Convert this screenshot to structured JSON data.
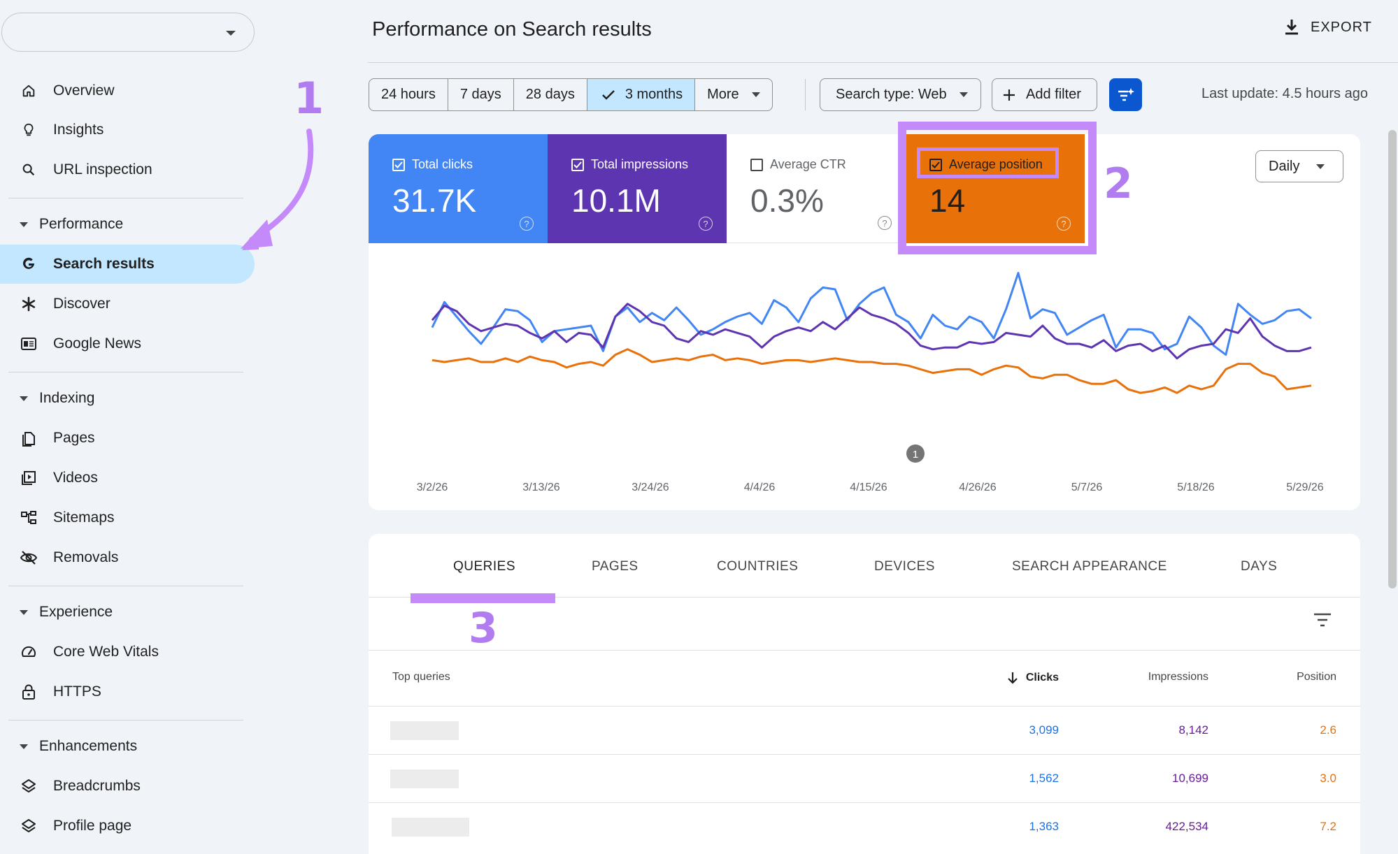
{
  "sidebar": {
    "overview": "Overview",
    "insights": "Insights",
    "url_inspection": "URL inspection",
    "performance": "Performance",
    "search_results": "Search results",
    "discover": "Discover",
    "google_news": "Google News",
    "indexing": "Indexing",
    "pages": "Pages",
    "videos": "Videos",
    "sitemaps": "Sitemaps",
    "removals": "Removals",
    "experience": "Experience",
    "core_web_vitals": "Core Web Vitals",
    "https": "HTTPS",
    "enhancements": "Enhancements",
    "breadcrumbs": "Breadcrumbs",
    "profile_page": "Profile page"
  },
  "header": {
    "title": "Performance on Search results",
    "export": "EXPORT"
  },
  "filters": {
    "ranges": [
      "24 hours",
      "7 days",
      "28 days",
      "3 months",
      "More"
    ],
    "selected_range": "3 months",
    "search_type": "Search type: Web",
    "add_filter": "Add filter",
    "last_update": "Last update: 4.5 hours ago"
  },
  "metrics": {
    "clicks": {
      "label": "Total clicks",
      "value": "31.7K",
      "checked": true,
      "color": "#4285f4"
    },
    "impressions": {
      "label": "Total impressions",
      "value": "10.1M",
      "checked": true,
      "color": "#5e35b1"
    },
    "ctr": {
      "label": "Average CTR",
      "value": "0.3%",
      "checked": false
    },
    "position": {
      "label": "Average position",
      "value": "14",
      "checked": true,
      "color": "#e8710a"
    },
    "granularity": "Daily"
  },
  "annotations": {
    "one": "1",
    "two": "2",
    "three": "3",
    "marker": "1"
  },
  "chart_data": {
    "type": "line",
    "x_ticks": [
      "3/2/26",
      "3/13/26",
      "3/24/26",
      "4/4/26",
      "4/15/26",
      "4/26/26",
      "5/7/26",
      "5/18/26",
      "5/29/26"
    ],
    "series": [
      {
        "name": "Total clicks",
        "color": "#4285f4",
        "values": [
          69,
          83,
          75,
          67,
          60,
          69,
          79,
          78,
          73,
          61,
          67,
          68,
          69,
          70,
          56,
          75,
          80,
          72,
          77,
          73,
          80,
          73,
          65,
          68,
          72,
          75,
          77,
          71,
          84,
          80,
          72,
          85,
          91,
          90,
          73,
          82,
          88,
          91,
          76,
          72,
          63,
          76,
          70,
          68,
          75,
          72,
          63,
          79,
          99,
          74,
          79,
          77,
          65,
          69,
          73,
          76,
          58,
          68,
          68,
          66,
          57,
          60,
          75,
          69,
          59,
          54,
          82,
          76,
          71,
          73,
          78,
          79,
          74
        ]
      },
      {
        "name": "Total impressions",
        "color": "#5e35b1",
        "values": [
          73,
          81,
          78,
          71,
          67,
          69,
          71,
          70,
          66,
          63,
          67,
          61,
          66,
          65,
          58,
          75,
          82,
          78,
          72,
          70,
          63,
          61,
          67,
          65,
          68,
          66,
          64,
          58,
          64,
          67,
          69,
          67,
          72,
          68,
          74,
          80,
          76,
          74,
          71,
          66,
          59,
          57,
          58,
          58,
          61,
          60,
          61,
          66,
          65,
          64,
          70,
          63,
          60,
          60,
          58,
          62,
          56,
          59,
          60,
          56,
          59,
          52,
          57,
          59,
          60,
          68,
          66,
          74,
          64,
          59,
          56,
          56,
          58
        ]
      },
      {
        "name": "Average position",
        "color": "#e8710a",
        "values": [
          51,
          50,
          51,
          52,
          50,
          50,
          52,
          50,
          53,
          51,
          50,
          47,
          49,
          50,
          48,
          54,
          57,
          54,
          50,
          51,
          52,
          51,
          53,
          54,
          51,
          52,
          51,
          49,
          50,
          51,
          51,
          50,
          51,
          52,
          51,
          50,
          50,
          49,
          49,
          48,
          46,
          44,
          45,
          46,
          46,
          43,
          46,
          48,
          47,
          42,
          41,
          43,
          43,
          40,
          38,
          38,
          40,
          35,
          33,
          34,
          36,
          33,
          37,
          35,
          37,
          46,
          49,
          49,
          44,
          42,
          35,
          36,
          37
        ]
      }
    ]
  },
  "table": {
    "tabs": [
      "QUERIES",
      "PAGES",
      "COUNTRIES",
      "DEVICES",
      "SEARCH APPEARANCE",
      "DAYS"
    ],
    "active_tab": "QUERIES",
    "headers": {
      "query": "Top queries",
      "clicks": "Clicks",
      "impressions": "Impressions",
      "position": "Position"
    },
    "rows": [
      {
        "clicks": "3,099",
        "impressions": "8,142",
        "position": "2.6"
      },
      {
        "clicks": "1,562",
        "impressions": "10,699",
        "position": "3.0"
      },
      {
        "clicks": "1,363",
        "impressions": "422,534",
        "position": "7.2"
      }
    ]
  }
}
